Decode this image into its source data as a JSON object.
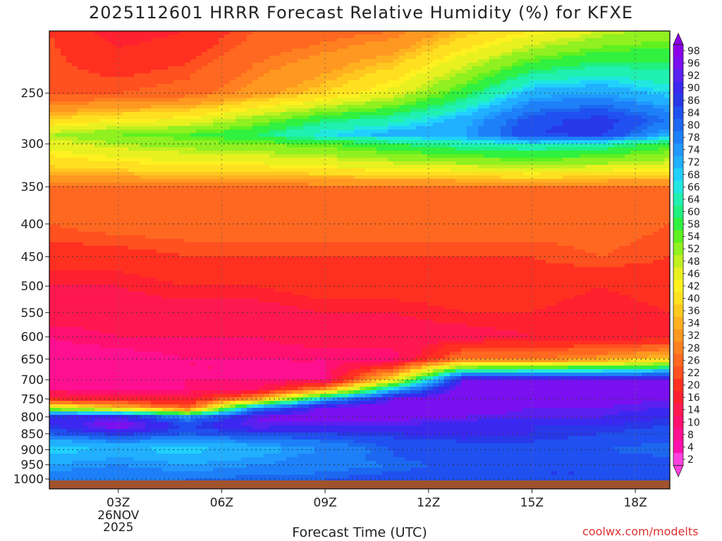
{
  "title": "2025112601 HRRR Forecast Relative Humidity (%) for KFXE",
  "xlabel": "Forecast Time (UTC)",
  "credit": "coolwx.com/modelts",
  "chart_data": {
    "type": "heatmap",
    "title": "2025112601 HRRR Forecast Relative Humidity (%) for KFXE",
    "xlabel": "Forecast Time (UTC)",
    "ylabel": "",
    "x_ticks": [
      {
        "hour": 3,
        "label": "03Z",
        "sub": [
          "26NOV",
          "2025"
        ]
      },
      {
        "hour": 6,
        "label": "06Z"
      },
      {
        "hour": 9,
        "label": "09Z"
      },
      {
        "hour": 12,
        "label": "12Z"
      },
      {
        "hour": 15,
        "label": "15Z"
      },
      {
        "hour": 18,
        "label": "18Z"
      }
    ],
    "xlim": [
      1,
      19
    ],
    "y_ticks": [
      250,
      300,
      350,
      400,
      450,
      500,
      550,
      600,
      650,
      700,
      750,
      800,
      850,
      900,
      950,
      1000
    ],
    "ylim_hPa": [
      200,
      1000
    ],
    "grid": true,
    "colorbar": {
      "labels": [
        98,
        96,
        92,
        90,
        86,
        84,
        80,
        78,
        74,
        72,
        68,
        66,
        64,
        60,
        58,
        54,
        52,
        48,
        46,
        42,
        40,
        36,
        34,
        32,
        28,
        26,
        22,
        20,
        16,
        14,
        10,
        8,
        4,
        2
      ],
      "colors": [
        "#8b00e8",
        "#7a10f0",
        "#5a20f0",
        "#3a28f0",
        "#2838e8",
        "#2050f0",
        "#1c68f0",
        "#1e80f8",
        "#2098ff",
        "#20b0ff",
        "#20d0ff",
        "#20e8e0",
        "#20f0b0",
        "#20f080",
        "#30f040",
        "#60f020",
        "#90f020",
        "#c0f020",
        "#e8f020",
        "#fff020",
        "#ffe020",
        "#ffc820",
        "#ffb020",
        "#ff9820",
        "#ff8020",
        "#ff6820",
        "#ff5020",
        "#ff3020",
        "#ff2030",
        "#ff1850",
        "#ff1070",
        "#ff1090",
        "#ff10b0",
        "#ff40e0"
      ]
    },
    "pressure_levels_hPa": [
      200,
      250,
      275,
      290,
      300,
      325,
      350,
      400,
      450,
      500,
      550,
      600,
      650,
      700,
      725,
      750,
      775,
      800,
      825,
      850,
      875,
      900,
      925,
      950,
      975,
      1000
    ],
    "hours": [
      1,
      3,
      5,
      7,
      9,
      11,
      13,
      15,
      17,
      19
    ],
    "rh_percent": [
      [
        20,
        14,
        16,
        22,
        24,
        26,
        34,
        40,
        46,
        50
      ],
      [
        22,
        22,
        24,
        30,
        36,
        44,
        56,
        70,
        72,
        66
      ],
      [
        36,
        40,
        42,
        50,
        58,
        62,
        70,
        82,
        86,
        78
      ],
      [
        48,
        52,
        54,
        58,
        66,
        70,
        72,
        84,
        86,
        70
      ],
      [
        44,
        48,
        50,
        52,
        54,
        58,
        62,
        64,
        62,
        56
      ],
      [
        36,
        38,
        40,
        40,
        42,
        44,
        46,
        48,
        46,
        44
      ],
      [
        26,
        26,
        26,
        26,
        26,
        26,
        26,
        26,
        26,
        26
      ],
      [
        22,
        24,
        24,
        24,
        24,
        24,
        24,
        24,
        24,
        22
      ],
      [
        18,
        18,
        20,
        20,
        20,
        20,
        20,
        20,
        22,
        20
      ],
      [
        14,
        14,
        16,
        16,
        18,
        18,
        18,
        18,
        16,
        18
      ],
      [
        12,
        12,
        12,
        12,
        14,
        14,
        16,
        16,
        14,
        16
      ],
      [
        8,
        10,
        10,
        10,
        12,
        12,
        12,
        14,
        14,
        14
      ],
      [
        6,
        6,
        8,
        8,
        8,
        8,
        26,
        26,
        30,
        36
      ],
      [
        6,
        6,
        8,
        8,
        8,
        40,
        92,
        94,
        94,
        94
      ],
      [
        8,
        8,
        8,
        10,
        30,
        70,
        96,
        96,
        96,
        96
      ],
      [
        16,
        14,
        14,
        30,
        70,
        92,
        96,
        94,
        94,
        92
      ],
      [
        46,
        36,
        22,
        76,
        94,
        96,
        96,
        92,
        92,
        90
      ],
      [
        86,
        90,
        74,
        92,
        94,
        94,
        92,
        90,
        90,
        86
      ],
      [
        86,
        96,
        84,
        92,
        90,
        90,
        88,
        86,
        86,
        84
      ],
      [
        80,
        86,
        80,
        84,
        84,
        86,
        88,
        86,
        84,
        82
      ],
      [
        70,
        74,
        72,
        74,
        78,
        82,
        84,
        84,
        82,
        80
      ],
      [
        66,
        68,
        66,
        70,
        74,
        80,
        82,
        84,
        80,
        78
      ],
      [
        70,
        72,
        70,
        72,
        76,
        80,
        82,
        84,
        82,
        80
      ],
      [
        72,
        74,
        72,
        74,
        76,
        78,
        82,
        82,
        82,
        80
      ],
      [
        74,
        76,
        74,
        76,
        78,
        80,
        82,
        84,
        84,
        82
      ],
      [
        76,
        78,
        78,
        80,
        80,
        82,
        84,
        84,
        84,
        82
      ]
    ]
  }
}
